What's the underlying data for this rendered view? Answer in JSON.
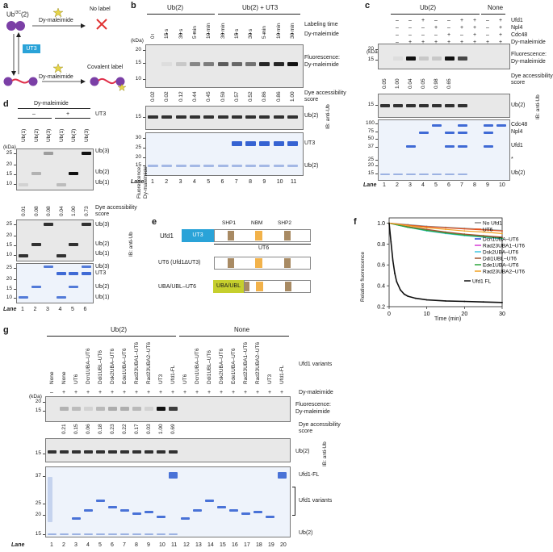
{
  "panel_labels": {
    "a": "a",
    "b": "b",
    "c": "c",
    "d": "d",
    "e": "e",
    "f": "f",
    "g": "g"
  },
  "common": {
    "fluor": "Fluorescence:",
    "dy_mal": "Dy-maleimide",
    "dye_acc_1": "Dye accessibility",
    "dye_acc_2": "score",
    "ib_anti_ub": "IB: anti-Ub",
    "lane": "Lane",
    "kda": "(kDa)",
    "ub2": "Ub(2)",
    "ub1": "Ub(1)",
    "ub3": "Ub(3)"
  },
  "panel_a": {
    "ub_label": "Ub",
    "ub_sup": "I3C",
    "ub_suffix": "(2)",
    "dy_top": "Dy-maleimide",
    "no_label": "No label",
    "ut3": "UT3",
    "dy_bottom": "Dy-maleimide",
    "covalent": "Covalent label"
  },
  "panel_b": {
    "hdr_left": "Ub(2)",
    "hdr_right": "Ub(2) + UT3",
    "time_title": "Labeling time",
    "times": [
      "0",
      "15 s",
      "30 s",
      "5 min",
      "10 min",
      "30 min",
      "15 s",
      "30 s",
      "5 min",
      "10 min",
      "30 min"
    ],
    "dy_row": [
      "–",
      "+",
      "+",
      "+",
      "+",
      "+",
      "+",
      "+",
      "+",
      "+",
      "+"
    ],
    "scores": [
      "0.02",
      "0.02",
      "0.12",
      "0.44",
      "0.45",
      "0.59",
      "0.57",
      "0.52",
      "0.86",
      "0.86",
      "1.00"
    ],
    "lanes": [
      "1",
      "2",
      "3",
      "4",
      "5",
      "6",
      "7",
      "8",
      "9",
      "10",
      "11"
    ],
    "mw_fl": [
      "20",
      "15",
      "10"
    ],
    "mw_ib": [
      "15"
    ],
    "mw_cb": [
      "30",
      "25",
      "20",
      "15"
    ],
    "ut3": "UT3",
    "ub2": "Ub(2)"
  },
  "panel_c": {
    "hdr_left": "Ub(2)",
    "hdr_right": "None",
    "row_names": [
      "Ufd1",
      "Npl4",
      "Cdc48",
      "Dy-maleimide"
    ],
    "rows": [
      [
        "–",
        "–",
        "+",
        "–",
        "–",
        "+",
        "+",
        "–",
        "+"
      ],
      [
        "–",
        "–",
        "–",
        "+",
        "–",
        "+",
        "+",
        "–",
        "+"
      ],
      [
        "–",
        "–",
        "–",
        "–",
        "+",
        "–",
        "+",
        "–",
        "+"
      ],
      [
        "–",
        "+",
        "+",
        "+",
        "+",
        "+",
        "+",
        "+",
        "+"
      ]
    ],
    "scores": [
      "0.05",
      "1.00",
      "0.04",
      "0.05",
      "0.98",
      "0.65"
    ],
    "lanes": [
      "1",
      "2",
      "3",
      "4",
      "5",
      "6",
      "7",
      "8",
      "9",
      "10"
    ],
    "mw_fl": [
      "20",
      "15"
    ],
    "mw_ib": [
      "15"
    ],
    "mw_cb": [
      "100",
      "75",
      "50",
      "37",
      "25",
      "20",
      "15"
    ],
    "right_labels": [
      "Cdc48",
      "Npl4",
      "Ufd1",
      "*",
      "Ub(2)"
    ]
  },
  "panel_d": {
    "title": "Dy-maleimide",
    "minus": "–",
    "plus": "+",
    "ut3": "UT3",
    "col_labels": [
      "Ub(1)",
      "Ub(2)",
      "Ub(3)",
      "Ub(1)",
      "Ub(2)",
      "Ub(3)"
    ],
    "scores": [
      "0.01",
      "0.08",
      "0.08",
      "0.04",
      "1.00",
      "0.73"
    ],
    "lanes": [
      "1",
      "2",
      "3",
      "4",
      "5",
      "6"
    ],
    "mw_fl": [
      "25",
      "20",
      "15",
      "10"
    ],
    "mw_ib": [
      "25",
      "20",
      "15",
      "10"
    ],
    "mw_cb": [
      "25",
      "20",
      "15",
      "10"
    ],
    "right_fl": [
      "Ub(3)",
      "Ub(2)",
      "Ub(1)"
    ],
    "right_ib": [
      "Ub(3)",
      "Ub(2)",
      "Ub(1)"
    ],
    "right_cb": [
      "Ub(3)",
      "UT3",
      "Ub(2)",
      "Ub(1)"
    ]
  },
  "panel_e": {
    "ufd1": "Ufd1",
    "ut3": "UT3",
    "shp1": "SHP1",
    "nbm": "NBM",
    "shp2": "SHP2",
    "ut6": "UT6",
    "ut6_row": "UT6 (Ufd1ΔUT3)",
    "uba_row": "UBA/UBL–UT6",
    "uba_box": "UBA/UBL"
  },
  "chart_data": {
    "type": "line",
    "xlabel": "Time (min)",
    "ylabel": "Relative fluorescence",
    "xlim": [
      0,
      30
    ],
    "ylim": [
      0.2,
      1.05
    ],
    "xticks": [
      "0",
      "10",
      "20",
      "30"
    ],
    "yticks": [
      "0.2",
      "0.4",
      "0.6",
      "0.8",
      "1.0"
    ],
    "legend_placement": "right",
    "series": [
      {
        "name": "No Ufd1",
        "color": "#8c8c8c",
        "x": [
          0,
          5,
          10,
          15,
          20,
          25,
          30
        ],
        "y": [
          1.0,
          0.985,
          0.97,
          0.96,
          0.95,
          0.94,
          0.93
        ]
      },
      {
        "name": "UT6",
        "color": "#e8531e",
        "x": [
          0,
          5,
          10,
          15,
          20,
          25,
          30
        ],
        "y": [
          1.0,
          0.98,
          0.965,
          0.955,
          0.945,
          0.935,
          0.925
        ]
      },
      {
        "name": "Dcn1UBA–UT6",
        "color": "#2546d8",
        "x": [
          0,
          5,
          10,
          15,
          20,
          25,
          30
        ],
        "y": [
          1.0,
          0.96,
          0.93,
          0.905,
          0.885,
          0.87,
          0.855
        ]
      },
      {
        "name": "Rad23UBA1–UT6",
        "color": "#d63ad6",
        "x": [
          0,
          5,
          10,
          15,
          20,
          25,
          30
        ],
        "y": [
          1.0,
          0.965,
          0.935,
          0.91,
          0.89,
          0.875,
          0.86
        ]
      },
      {
        "name": "Dsk2UBA–UT6",
        "color": "#3fc6e0",
        "x": [
          0,
          5,
          10,
          15,
          20,
          25,
          30
        ],
        "y": [
          1.0,
          0.96,
          0.925,
          0.9,
          0.88,
          0.865,
          0.85
        ]
      },
      {
        "name": "Ddi1UBL–UT6",
        "color": "#a0522d",
        "x": [
          0,
          5,
          10,
          15,
          20,
          25,
          30
        ],
        "y": [
          1.0,
          0.965,
          0.94,
          0.915,
          0.895,
          0.88,
          0.865
        ]
      },
      {
        "name": "Ede1UBA–UT6",
        "color": "#2aa63a",
        "x": [
          0,
          5,
          10,
          15,
          20,
          25,
          30
        ],
        "y": [
          1.0,
          0.96,
          0.93,
          0.905,
          0.885,
          0.87,
          0.855
        ]
      },
      {
        "name": "Rad23UBA2–UT6",
        "color": "#f0a020",
        "x": [
          0,
          5,
          10,
          15,
          20,
          25,
          30
        ],
        "y": [
          1.0,
          0.975,
          0.955,
          0.94,
          0.925,
          0.915,
          0.9
        ]
      },
      {
        "name": "Ufd1 FL",
        "color": "#111111",
        "x": [
          0,
          0.5,
          1,
          1.5,
          2,
          3,
          4,
          5,
          7,
          10,
          15,
          20,
          25,
          30
        ],
        "y": [
          1.0,
          0.82,
          0.64,
          0.52,
          0.44,
          0.36,
          0.32,
          0.3,
          0.28,
          0.265,
          0.255,
          0.25,
          0.245,
          0.24
        ]
      }
    ]
  },
  "panel_g": {
    "hdr_left": "Ub(2)",
    "hdr_right": "None",
    "variants_title": "Ufd1 variants",
    "variants": [
      "None",
      "None",
      "UT6",
      "Dcn1UBA–UT6",
      "Ddi1UBL–UT6",
      "Dsk2UBA–UT6",
      "Ede1UBA–UT6",
      "Rad23UBA1–UT6",
      "Rad23UBA2–UT6",
      "UT3",
      "Ufd1-FL",
      "UT6",
      "Dcn1UBA–UT6",
      "Ddi1UBL–UT6",
      "Dsk2UBA–UT6",
      "Ede1UBA–UT6",
      "Rad23UBA1–UT6",
      "Rad23UBA2–UT6",
      "UT3",
      "Ufd1-FL"
    ],
    "dy_row": [
      "–",
      "+",
      "+",
      "+",
      "+",
      "+",
      "+",
      "+",
      "+",
      "+",
      "+",
      "+",
      "+",
      "+",
      "+",
      "+",
      "+",
      "+",
      "+",
      "+"
    ],
    "scores": [
      "0.21",
      "0.15",
      "0.06",
      "0.18",
      "0.23",
      "0.22",
      "0.17",
      "0.03",
      "1.00",
      "0.69"
    ],
    "lanes": [
      "1",
      "2",
      "3",
      "4",
      "5",
      "6",
      "7",
      "8",
      "9",
      "10",
      "11",
      "12",
      "13",
      "14",
      "15",
      "16",
      "17",
      "18",
      "19",
      "20"
    ],
    "mw_fl": [
      "20",
      "15"
    ],
    "mw_ib": [
      "15"
    ],
    "mw_cb": [
      "37",
      "25",
      "20",
      "15"
    ],
    "right_cb": [
      "Ufd1-FL",
      "Ufd1 variants",
      "Ub(2)"
    ]
  }
}
